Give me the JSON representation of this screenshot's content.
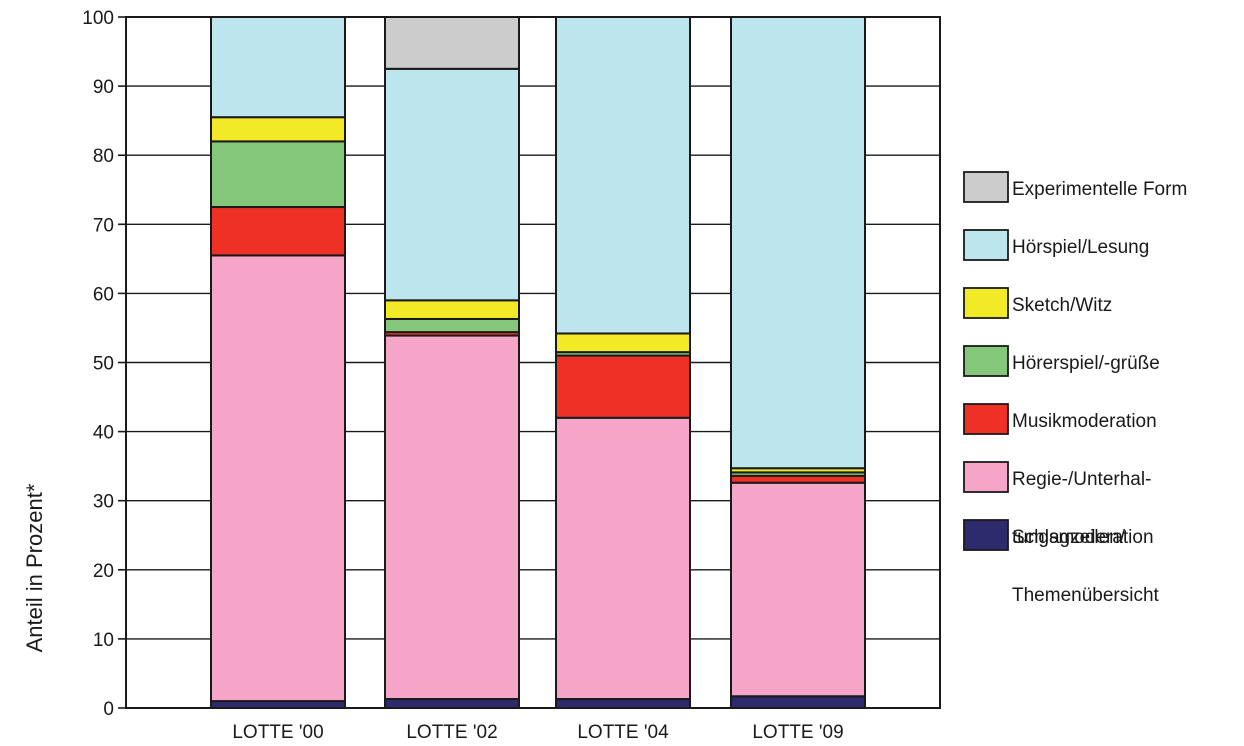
{
  "chart_data": {
    "type": "bar",
    "stacked": true,
    "title": "",
    "xlabel": "",
    "ylabel": "Anteil in Prozent*",
    "ylim": [
      0,
      100
    ],
    "yticks": [
      0,
      10,
      20,
      30,
      40,
      50,
      60,
      70,
      80,
      90,
      100
    ],
    "grid": true,
    "legend_position": "right",
    "categories": [
      "LOTTE '00",
      "LOTTE '02",
      "LOTTE '04",
      "LOTTE '09"
    ],
    "series": [
      {
        "name": "Schlagzeilen/",
        "name_line2": "Themenübersicht",
        "color": "#2e2a6e",
        "values": [
          1.0,
          1.3,
          1.3,
          1.7
        ]
      },
      {
        "name": "Regie-/Unterhal-",
        "name_line2": "tungsmoderation",
        "color": "#f4a5c8",
        "values": [
          64.5,
          52.6,
          40.7,
          30.9
        ]
      },
      {
        "name": "Musikmoderation",
        "color": "#ee3124",
        "values": [
          7.0,
          0.5,
          9.0,
          1.0
        ]
      },
      {
        "name": "Hörerspiel/-grüße",
        "color": "#84c77b",
        "values": [
          9.5,
          1.9,
          0.5,
          0.5
        ]
      },
      {
        "name": "Sketch/Witz",
        "color": "#f3ea27",
        "values": [
          3.5,
          2.7,
          2.7,
          0.6
        ]
      },
      {
        "name": "Hörspiel/Lesung",
        "color": "#bde5ee",
        "values": [
          14.5,
          33.5,
          45.8,
          65.3
        ]
      },
      {
        "name": "Experimentelle Form",
        "color": "#cccccc",
        "values": [
          0,
          7.5,
          0,
          0
        ]
      }
    ]
  }
}
